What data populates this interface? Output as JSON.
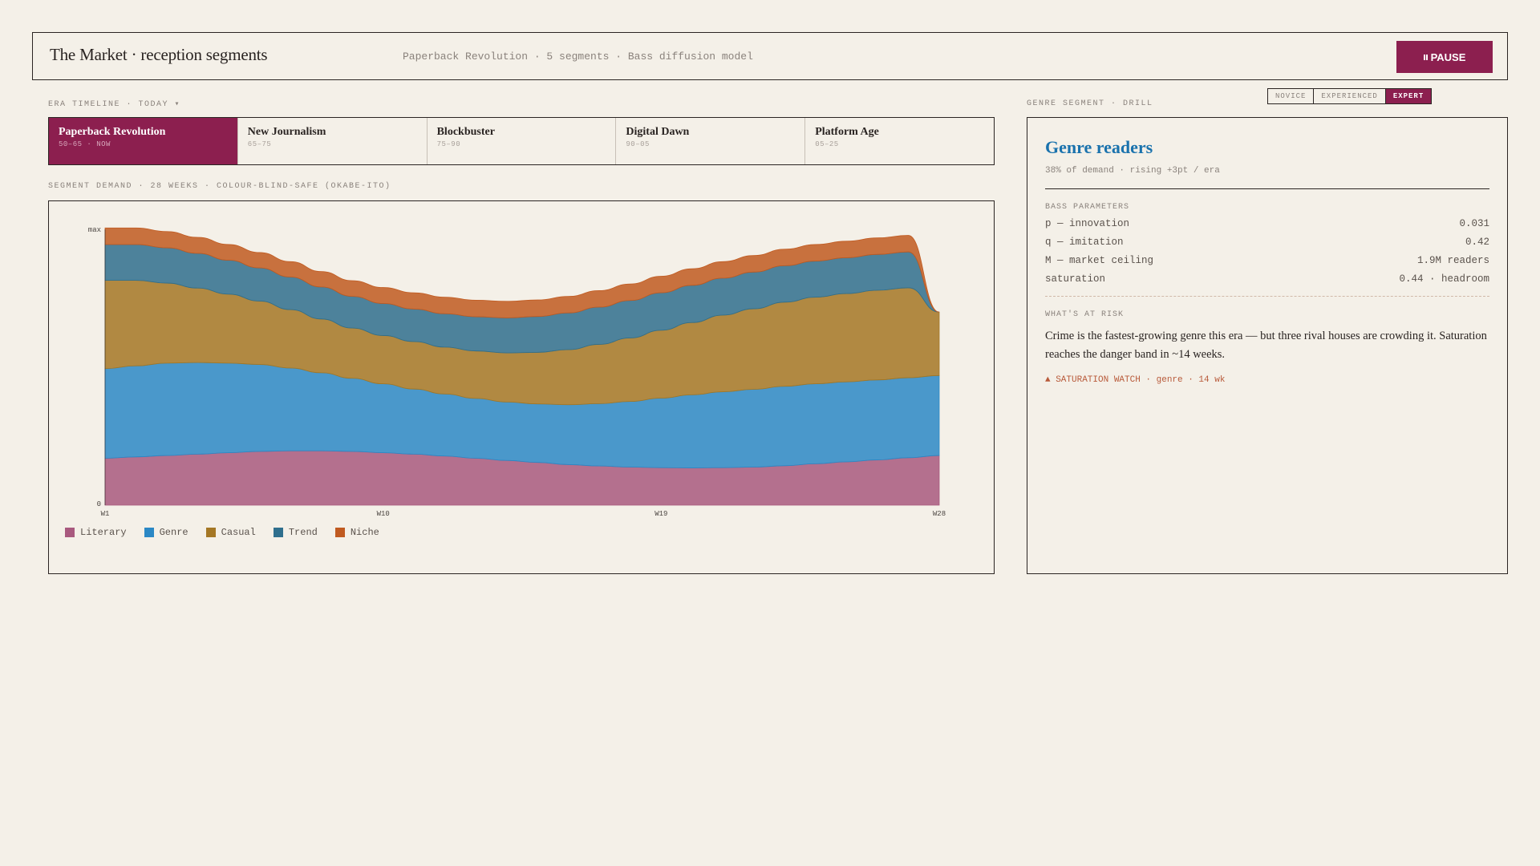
{
  "header": {
    "title": "The Market · reception segments",
    "subtitle": "Paperback Revolution · 5 segments · Bass diffusion model",
    "pause_label": "PAUSE"
  },
  "timeline": {
    "label": "ERA TIMELINE · TODAY ▾",
    "eras": [
      {
        "name": "Paperback Revolution",
        "years": "50–65 · NOW",
        "active": true
      },
      {
        "name": "New Journalism",
        "years": "65–75",
        "active": false
      },
      {
        "name": "Blockbuster",
        "years": "75–90",
        "active": false
      },
      {
        "name": "Digital Dawn",
        "years": "90–05",
        "active": false
      },
      {
        "name": "Platform Age",
        "years": "05–25",
        "active": false
      }
    ]
  },
  "chart_section_label": "SEGMENT DEMAND · 28 WEEKS · COLOUR-BLIND-SAFE (OKABE-ITO)",
  "chart_data": {
    "type": "area",
    "stacked": true,
    "x": [
      "W1",
      "W2",
      "W3",
      "W4",
      "W5",
      "W6",
      "W7",
      "W8",
      "W9",
      "W10",
      "W11",
      "W12",
      "W13",
      "W14",
      "W15",
      "W16",
      "W17",
      "W18",
      "W19",
      "W20",
      "W21",
      "W22",
      "W23",
      "W24",
      "W25",
      "W26",
      "W27",
      "W28"
    ],
    "x_tick_labels": [
      "W1",
      "W10",
      "W19",
      "W28"
    ],
    "y_tick_labels": [
      "0",
      "max"
    ],
    "ylim": [
      0,
      1
    ],
    "series": [
      {
        "name": "Literary",
        "color": "#a8597e",
        "values": [
          0.17,
          0.175,
          0.18,
          0.185,
          0.19,
          0.195,
          0.197,
          0.197,
          0.195,
          0.19,
          0.185,
          0.178,
          0.17,
          0.162,
          0.155,
          0.147,
          0.142,
          0.138,
          0.136,
          0.135,
          0.136,
          0.138,
          0.143,
          0.15,
          0.157,
          0.164,
          0.172,
          0.18
        ]
      },
      {
        "name": "Genre",
        "color": "#2b88c5",
        "values": [
          0.325,
          0.33,
          0.335,
          0.332,
          0.325,
          0.315,
          0.3,
          0.283,
          0.265,
          0.25,
          0.236,
          0.225,
          0.217,
          0.212,
          0.212,
          0.217,
          0.226,
          0.238,
          0.252,
          0.265,
          0.275,
          0.282,
          0.288,
          0.29,
          0.29,
          0.29,
          0.29,
          0.29
        ]
      },
      {
        "name": "Casual",
        "color": "#a47724",
        "values": [
          0.32,
          0.31,
          0.29,
          0.27,
          0.25,
          0.23,
          0.212,
          0.195,
          0.182,
          0.175,
          0.172,
          0.17,
          0.172,
          0.178,
          0.187,
          0.2,
          0.215,
          0.23,
          0.246,
          0.262,
          0.278,
          0.292,
          0.305,
          0.314,
          0.32,
          0.325,
          0.326,
          0.23
        ]
      },
      {
        "name": "Trend",
        "color": "#2f6f8d",
        "values": [
          0.13,
          0.13,
          0.128,
          0.126,
          0.123,
          0.12,
          0.118,
          0.116,
          0.115,
          0.116,
          0.118,
          0.121,
          0.124,
          0.127,
          0.13,
          0.133,
          0.135,
          0.136,
          0.136,
          0.135,
          0.134,
          0.133,
          0.132,
          0.131,
          0.13,
          0.13,
          0.13,
          0
        ]
      },
      {
        "name": "Niche",
        "color": "#c05a20",
        "values": [
          0.06,
          0.06,
          0.059,
          0.058,
          0.057,
          0.056,
          0.056,
          0.056,
          0.057,
          0.058,
          0.059,
          0.06,
          0.06,
          0.06,
          0.06,
          0.06,
          0.06,
          0.06,
          0.06,
          0.06,
          0.06,
          0.06,
          0.06,
          0.06,
          0.06,
          0.06,
          0.06,
          0
        ]
      }
    ]
  },
  "level_toggle": {
    "options": [
      "NOVICE",
      "EXPERIENCED",
      "EXPERT"
    ],
    "active": "EXPERT"
  },
  "drill": {
    "section_label": "GENRE SEGMENT · DRILL",
    "title": "Genre readers",
    "subtitle": "38% of demand · rising +3pt / era",
    "params_label": "BASS PARAMETERS",
    "params": [
      {
        "name": "p — innovation",
        "value": "0.031"
      },
      {
        "name": "q — imitation",
        "value": "0.42"
      },
      {
        "name": "M — market ceiling",
        "value": "1.9M readers"
      },
      {
        "name": "saturation",
        "value": "0.44 · headroom"
      }
    ],
    "risk_label": "WHAT'S AT RISK",
    "risk_text": "Crime is the fastest-growing genre this era — but three rival houses are crowding it. Saturation reaches the danger band in ~14 weeks.",
    "warning": "▲ SATURATION WATCH · genre · 14 wk"
  }
}
